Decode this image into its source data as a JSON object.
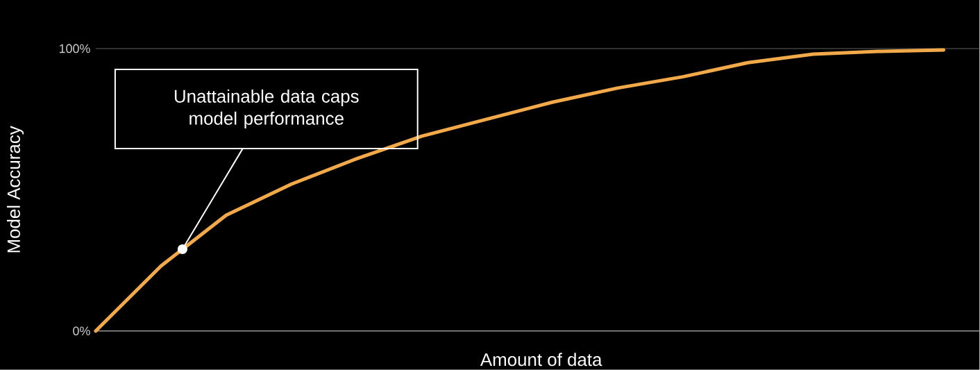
{
  "chart_data": {
    "type": "line",
    "xlabel": "Amount of data",
    "ylabel": "Model Accuracy",
    "categories": [
      null,
      null,
      null,
      null,
      null,
      null,
      null,
      null,
      null,
      null,
      null,
      null,
      null,
      null
    ],
    "series": [
      {
        "color": "#f2a94a",
        "values": [
          0,
          23,
          41,
          52,
          61,
          69,
          75,
          81,
          86,
          90,
          95,
          98,
          99,
          99.5
        ]
      }
    ],
    "ylim": [
      0,
      100
    ],
    "yticks": [
      {
        "value": 0,
        "label": "0%"
      },
      {
        "value": 100,
        "label": "100%"
      }
    ],
    "grid": "y",
    "marker": "none",
    "line_style": "solid",
    "annotations": [
      "Unattainable data caps model performance"
    ]
  }
}
